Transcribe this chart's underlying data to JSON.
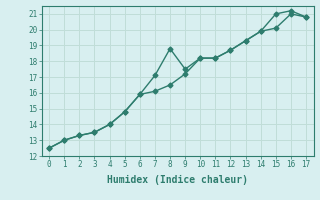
{
  "line1_x": [
    0,
    1,
    2,
    3,
    4,
    5,
    6,
    7,
    8,
    9,
    10,
    11,
    12,
    13,
    14,
    15,
    16,
    17
  ],
  "line1_y": [
    12.5,
    13.0,
    13.3,
    13.5,
    14.0,
    14.8,
    15.9,
    16.1,
    16.5,
    17.2,
    18.2,
    18.2,
    18.7,
    19.3,
    19.9,
    20.1,
    21.0,
    20.8
  ],
  "line2_x": [
    0,
    1,
    2,
    3,
    4,
    5,
    6,
    7,
    8,
    9,
    10,
    11,
    12,
    13,
    14,
    15,
    16,
    17
  ],
  "line2_y": [
    12.5,
    13.0,
    13.3,
    13.5,
    14.0,
    14.8,
    15.9,
    17.1,
    18.8,
    17.5,
    18.2,
    18.2,
    18.7,
    19.3,
    19.9,
    21.0,
    21.2,
    20.8
  ],
  "line_color": "#2e7d6e",
  "bg_color": "#d8eff0",
  "grid_color": "#c0ddd8",
  "xlabel": "Humidex (Indice chaleur)",
  "xlim": [
    -0.5,
    17.5
  ],
  "ylim": [
    12,
    21.5
  ],
  "xticks": [
    0,
    1,
    2,
    3,
    4,
    5,
    6,
    7,
    8,
    9,
    10,
    11,
    12,
    13,
    14,
    15,
    16,
    17
  ],
  "yticks": [
    12,
    13,
    14,
    15,
    16,
    17,
    18,
    19,
    20,
    21
  ],
  "marker": "D",
  "marker_size": 2.5,
  "line_width": 1.0
}
